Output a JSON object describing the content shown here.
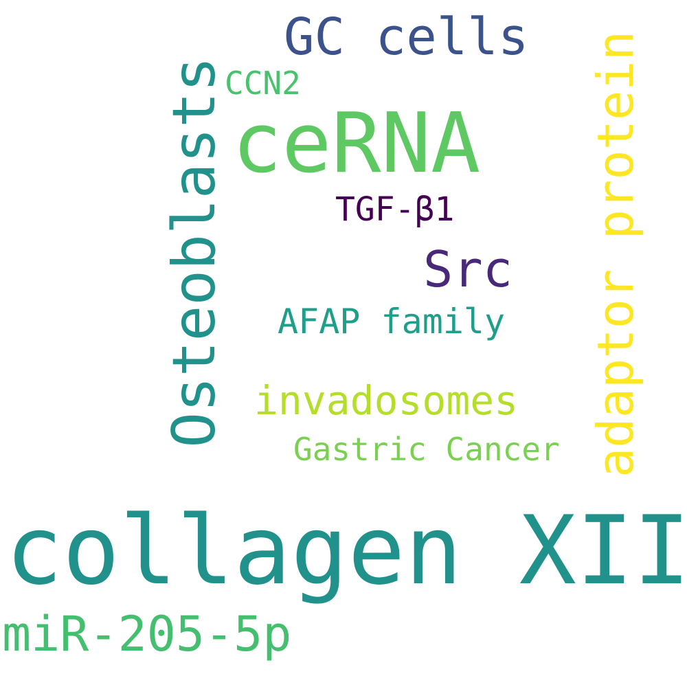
{
  "words": [
    {
      "key": "collagen_xiia",
      "text": "collagen XIIa",
      "color": "#21918c",
      "orientation": "horizontal"
    },
    {
      "key": "cerna",
      "text": "ceRNA",
      "color": "#5ec962",
      "orientation": "horizontal"
    },
    {
      "key": "osteoblasts",
      "text": "Osteoblasts",
      "color": "#21918c",
      "orientation": "vertical"
    },
    {
      "key": "adaptor_protein",
      "text": "adaptor protein",
      "color": "#fde725",
      "orientation": "vertical"
    },
    {
      "key": "gc_cells",
      "text": "GC cells",
      "color": "#3b528b",
      "orientation": "horizontal"
    },
    {
      "key": "src",
      "text": "Src",
      "color": "#482878",
      "orientation": "horizontal"
    },
    {
      "key": "mir_205_5p",
      "text": "miR-205-5p",
      "color": "#44bf70",
      "orientation": "horizontal"
    },
    {
      "key": "invadosomes",
      "text": "invadosomes",
      "color": "#b5de2b",
      "orientation": "horizontal"
    },
    {
      "key": "afap_family",
      "text": "AFAP family",
      "color": "#1f9e89",
      "orientation": "horizontal"
    },
    {
      "key": "gastric_cancer",
      "text": "Gastric Cancer",
      "color": "#7ad151",
      "orientation": "horizontal"
    },
    {
      "key": "tgf_beta1",
      "text": "TGF-β1",
      "color": "#440154",
      "orientation": "horizontal"
    },
    {
      "key": "ccn2",
      "text": "CCN2",
      "color": "#4ac16d",
      "orientation": "horizontal"
    }
  ]
}
